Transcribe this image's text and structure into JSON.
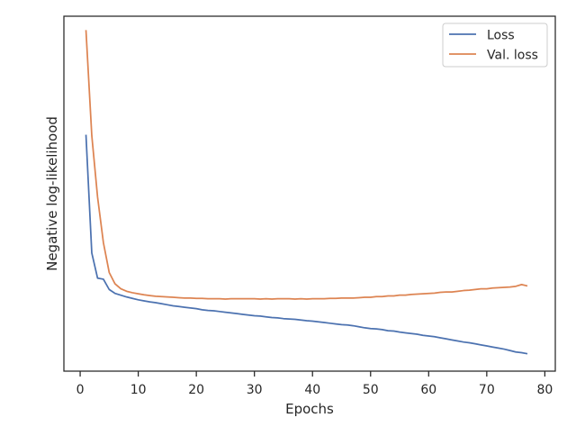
{
  "chart_data": {
    "type": "line",
    "title": "",
    "xlabel": "Epochs",
    "ylabel": "Negative log-likelihood",
    "xlim": [
      -2.8,
      81.8
    ],
    "ylim": [
      0,
      1
    ],
    "x_ticks": [
      0,
      10,
      20,
      30,
      40,
      50,
      60,
      70,
      80
    ],
    "y_ticks_shown": false,
    "grid": false,
    "legend": {
      "position": "upper right"
    },
    "series": [
      {
        "name": "Loss",
        "color": "#4c72b0",
        "x": [
          1,
          2,
          3,
          4,
          5,
          6,
          7,
          8,
          9,
          10,
          11,
          12,
          13,
          14,
          15,
          16,
          17,
          18,
          19,
          20,
          21,
          22,
          23,
          24,
          25,
          26,
          27,
          28,
          29,
          30,
          31,
          32,
          33,
          34,
          35,
          36,
          37,
          38,
          39,
          40,
          41,
          42,
          43,
          44,
          45,
          46,
          47,
          48,
          49,
          50,
          51,
          52,
          53,
          54,
          55,
          56,
          57,
          58,
          59,
          60,
          61,
          62,
          63,
          64,
          65,
          66,
          67,
          68,
          69,
          70,
          71,
          72,
          73,
          74,
          75,
          76,
          77
        ],
        "values": [
          0.666,
          0.333,
          0.262,
          0.259,
          0.23,
          0.219,
          0.214,
          0.209,
          0.205,
          0.201,
          0.198,
          0.195,
          0.193,
          0.19,
          0.187,
          0.184,
          0.182,
          0.18,
          0.178,
          0.176,
          0.173,
          0.171,
          0.17,
          0.168,
          0.166,
          0.164,
          0.162,
          0.16,
          0.158,
          0.156,
          0.155,
          0.153,
          0.151,
          0.15,
          0.148,
          0.147,
          0.146,
          0.144,
          0.142,
          0.141,
          0.139,
          0.137,
          0.135,
          0.133,
          0.131,
          0.13,
          0.128,
          0.125,
          0.122,
          0.12,
          0.119,
          0.117,
          0.114,
          0.113,
          0.11,
          0.108,
          0.106,
          0.104,
          0.101,
          0.099,
          0.097,
          0.094,
          0.091,
          0.088,
          0.085,
          0.082,
          0.08,
          0.077,
          0.074,
          0.071,
          0.068,
          0.065,
          0.062,
          0.058,
          0.054,
          0.052,
          0.049
        ]
      },
      {
        "name": "Val. loss",
        "color": "#dd8452",
        "x": [
          1,
          2,
          3,
          4,
          5,
          6,
          7,
          8,
          9,
          10,
          11,
          12,
          13,
          14,
          15,
          16,
          17,
          18,
          19,
          20,
          21,
          22,
          23,
          24,
          25,
          26,
          27,
          28,
          29,
          30,
          31,
          32,
          33,
          34,
          35,
          36,
          37,
          38,
          39,
          40,
          41,
          42,
          43,
          44,
          45,
          46,
          47,
          48,
          49,
          50,
          51,
          52,
          53,
          54,
          55,
          56,
          57,
          58,
          59,
          60,
          61,
          62,
          63,
          64,
          65,
          66,
          67,
          68,
          69,
          70,
          71,
          72,
          73,
          74,
          75,
          76,
          77
        ],
        "values": [
          0.961,
          0.664,
          0.49,
          0.362,
          0.278,
          0.246,
          0.232,
          0.225,
          0.221,
          0.218,
          0.215,
          0.213,
          0.211,
          0.21,
          0.209,
          0.208,
          0.207,
          0.206,
          0.206,
          0.205,
          0.205,
          0.204,
          0.204,
          0.204,
          0.203,
          0.204,
          0.204,
          0.204,
          0.204,
          0.204,
          0.203,
          0.204,
          0.203,
          0.204,
          0.204,
          0.204,
          0.203,
          0.204,
          0.203,
          0.204,
          0.204,
          0.204,
          0.205,
          0.205,
          0.206,
          0.206,
          0.206,
          0.207,
          0.208,
          0.208,
          0.21,
          0.21,
          0.212,
          0.212,
          0.214,
          0.214,
          0.216,
          0.217,
          0.218,
          0.219,
          0.22,
          0.222,
          0.223,
          0.223,
          0.225,
          0.227,
          0.228,
          0.23,
          0.232,
          0.232,
          0.234,
          0.235,
          0.236,
          0.237,
          0.239,
          0.244,
          0.24
        ]
      }
    ]
  }
}
